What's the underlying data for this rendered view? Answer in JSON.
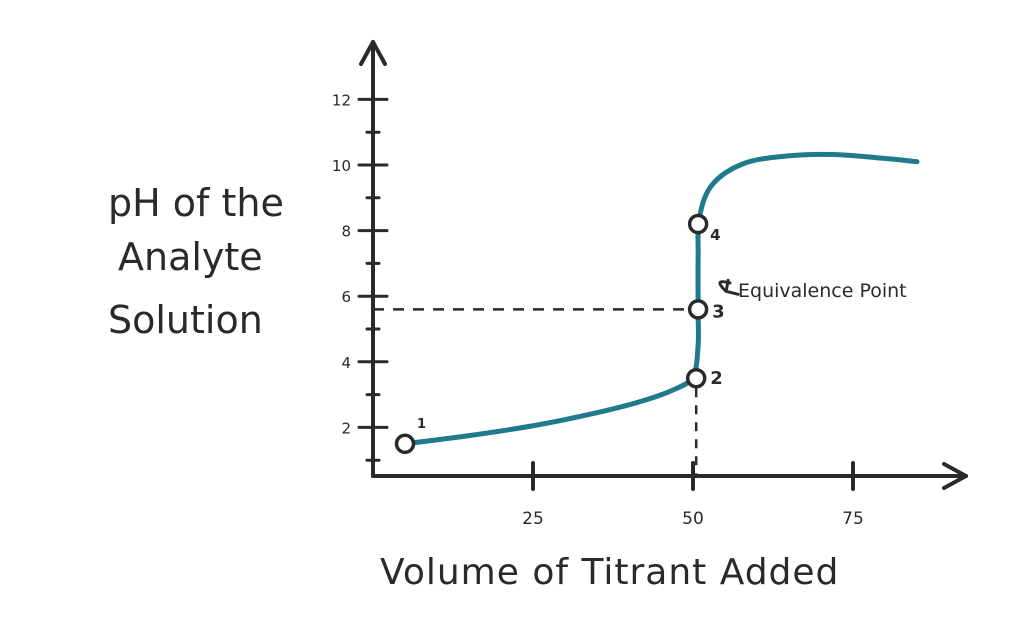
{
  "chart_data": {
    "type": "line",
    "title": "",
    "xlabel": "Volume of Titrant Added",
    "ylabel": [
      "pH of the",
      "Analyte",
      "Solution"
    ],
    "xlim": [
      0,
      95
    ],
    "ylim": [
      0,
      13
    ],
    "x_ticks": [
      25,
      50,
      75
    ],
    "x_tick_labels": [
      "25",
      "50",
      "75"
    ],
    "y_ticks": [
      2,
      4,
      6,
      8,
      10,
      12
    ],
    "y_tick_labels": [
      "2",
      "4",
      "6",
      "8",
      "10",
      "12"
    ],
    "grid": false,
    "series": [
      {
        "color": "#1f7a8c",
        "points": [
          [
            5,
            1.5
          ],
          [
            15,
            1.75
          ],
          [
            25,
            2.05
          ],
          [
            35,
            2.45
          ],
          [
            42,
            2.8
          ],
          [
            47,
            3.15
          ],
          [
            50,
            3.55
          ],
          [
            50.8,
            4.5
          ],
          [
            50.8,
            5.5
          ],
          [
            50.8,
            7.2
          ],
          [
            51,
            8.4
          ],
          [
            53,
            9.4
          ],
          [
            58,
            10.05
          ],
          [
            65,
            10.28
          ],
          [
            72,
            10.32
          ],
          [
            80,
            10.2
          ],
          [
            85,
            10.1
          ]
        ]
      }
    ],
    "marked_points": [
      {
        "label": "1",
        "x": 5,
        "y": 1.5
      },
      {
        "label": "2",
        "x": 50.5,
        "y": 3.5
      },
      {
        "label": "3",
        "x": 50.8,
        "y": 5.6
      },
      {
        "label": "4",
        "x": 50.8,
        "y": 8.2
      }
    ],
    "annotation": {
      "text": "Equivalence Point",
      "target_point": "3"
    },
    "reference_lines": {
      "equivalence_x": 50.5,
      "equivalence_y": 5.6,
      "style": "dashed"
    }
  }
}
